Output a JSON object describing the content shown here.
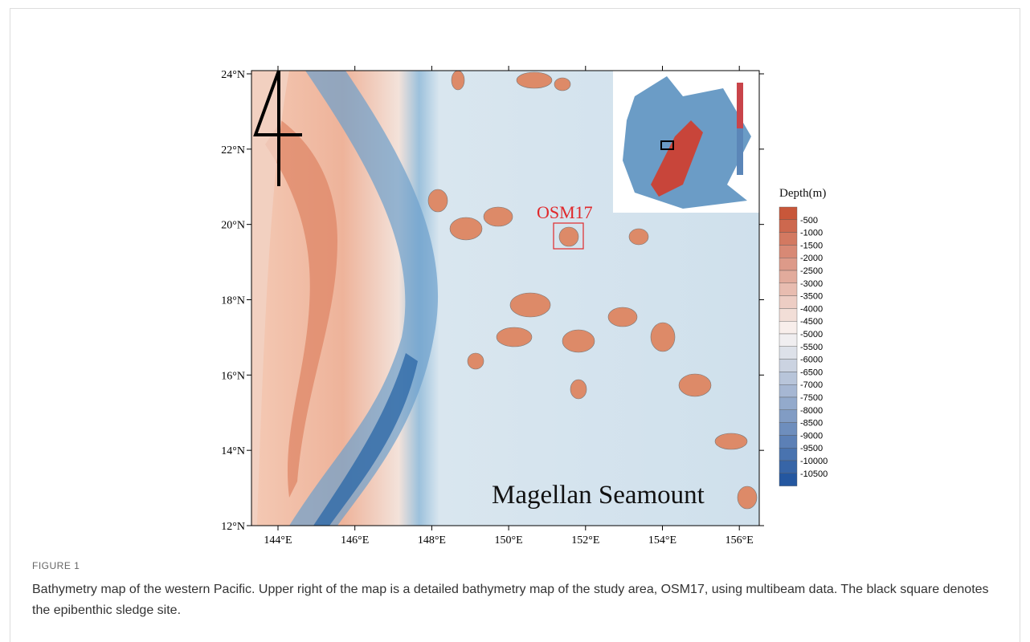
{
  "figure": {
    "map": {
      "y_labels": [
        "24°N",
        "22°N",
        "20°N",
        "18°N",
        "16°N",
        "14°N",
        "12°N"
      ],
      "x_labels": [
        "144°E",
        "146°E",
        "148°E",
        "150°E",
        "152°E",
        "154°E",
        "156°E"
      ],
      "site_label": "OSM17",
      "region_label": "Magellan Seamount",
      "colorbar_title": "Depth(m)",
      "colorbar_labels": [
        "-500",
        "-1000",
        "-1500",
        "-2000",
        "-2500",
        "-3000",
        "-3500",
        "-4000",
        "-4500",
        "-5000",
        "-5500",
        "-6000",
        "-6500",
        "-7000",
        "-7500",
        "-8000",
        "-8500",
        "-9000",
        "-9500",
        "-10000",
        "-10500"
      ]
    },
    "label": "FIGURE 1",
    "caption": "Bathymetry map of the western Pacific. Upper right of the map is a detailed bathymetry map of the study area, OSM17, using multibeam data. The black square denotes the epibenthic sledge site."
  }
}
